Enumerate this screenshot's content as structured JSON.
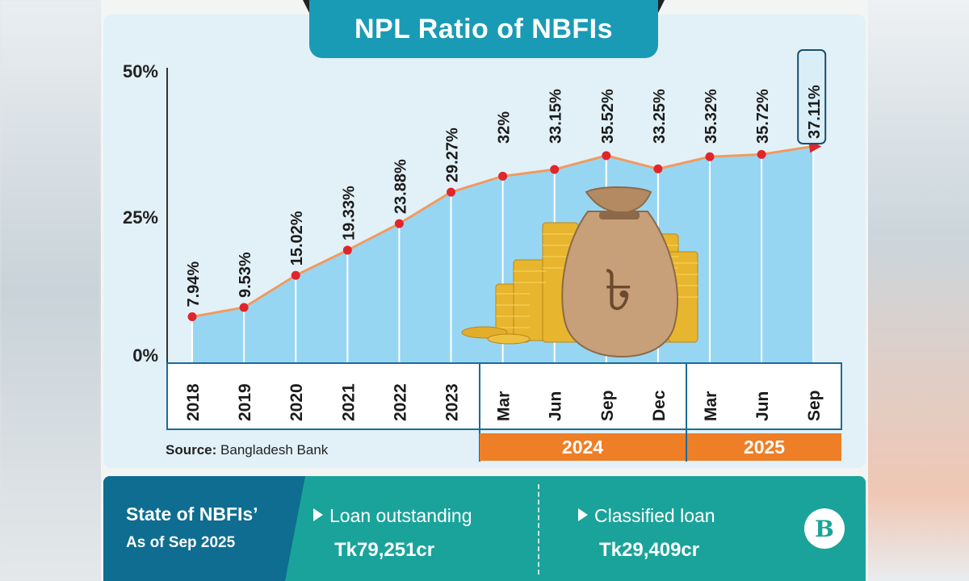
{
  "chart_data": {
    "type": "area",
    "title": "NPL Ratio of NBFIs",
    "categories": [
      "2018",
      "2019",
      "2020",
      "2021",
      "2022",
      "2023",
      "Mar",
      "Jun",
      "Sep",
      "Dec",
      "Mar",
      "Jun",
      "Sep"
    ],
    "values": [
      7.94,
      9.53,
      15.02,
      19.33,
      23.88,
      29.27,
      32,
      33.15,
      35.52,
      33.25,
      35.32,
      35.72,
      37.11
    ],
    "value_labels": [
      "7.94%",
      "9.53%",
      "15.02%",
      "19.33%",
      "23.88%",
      "29.27%",
      "32%",
      "33.15%",
      "35.52%",
      "33.25%",
      "35.32%",
      "35.72%",
      "37.11%"
    ],
    "year_groups": [
      {
        "label": "2024",
        "start": 6,
        "end": 9
      },
      {
        "label": "2025",
        "start": 10,
        "end": 12
      }
    ],
    "yticks": [
      "0%",
      "25%",
      "50%"
    ],
    "ytick_values": [
      0,
      25,
      50
    ],
    "ylim": [
      0,
      50
    ],
    "highlight_last": true,
    "colors": {
      "area": "#8fd3f2",
      "line": "#f29a5e",
      "point": "#e0262b",
      "drop": "#ffffff"
    }
  },
  "source": {
    "label": "Source:",
    "text": "Bangladesh Bank"
  },
  "footer": {
    "title": "State of NBFIs’",
    "subtitle": "As of Sep 2025",
    "stats": [
      {
        "label": "Loan outstanding",
        "value": "Tk79,251cr"
      },
      {
        "label": "Classified loan",
        "value": "Tk29,409cr"
      }
    ],
    "logo_icon": "tbs-logo-icon"
  },
  "decoration": {
    "illustration": "money-bag-icon"
  }
}
